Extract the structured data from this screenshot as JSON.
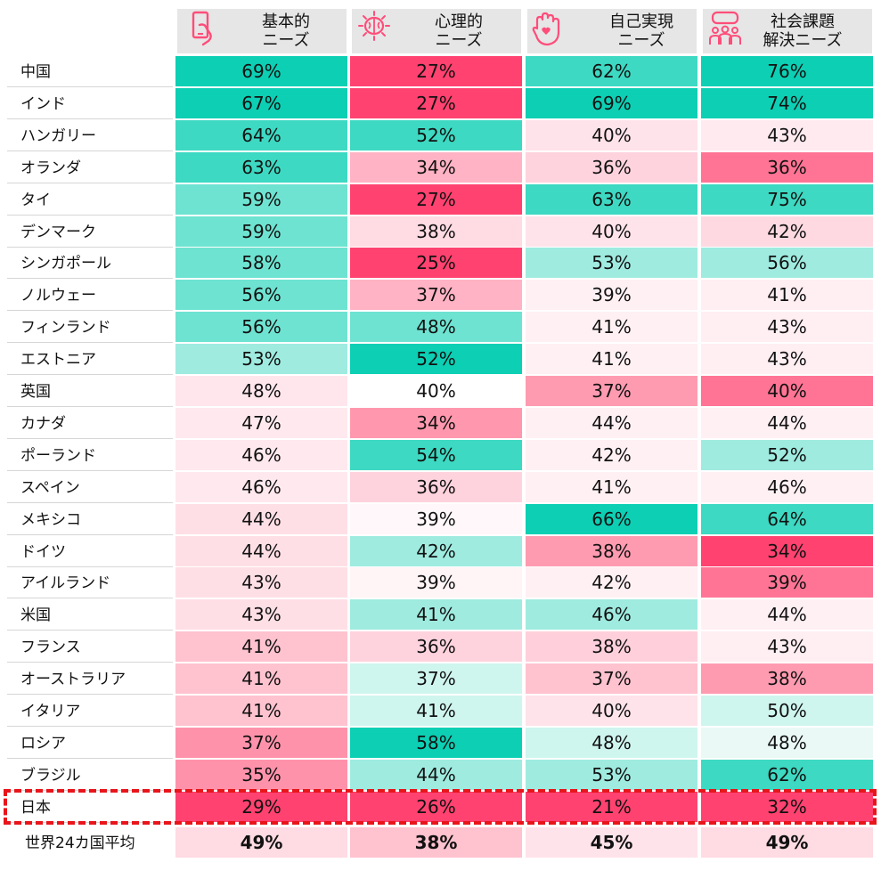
{
  "chart_data": {
    "type": "heatmap",
    "columns": [
      {
        "label": "基本的\nニーズ",
        "icon": "smartphone-hand-icon"
      },
      {
        "label": "心理的\nニーズ",
        "icon": "brain-icon"
      },
      {
        "label": "自己実現\nニーズ",
        "icon": "raised-hand-heart-icon"
      },
      {
        "label": "社会課題\n解決ニーズ",
        "icon": "community-people-icon"
      }
    ],
    "rows": [
      {
        "country": "中国",
        "values": [
          69,
          27,
          62,
          76
        ]
      },
      {
        "country": "インド",
        "values": [
          67,
          27,
          69,
          74
        ]
      },
      {
        "country": "ハンガリー",
        "values": [
          64,
          52,
          40,
          43
        ]
      },
      {
        "country": "オランダ",
        "values": [
          63,
          34,
          36,
          36
        ]
      },
      {
        "country": "タイ",
        "values": [
          59,
          27,
          63,
          75
        ]
      },
      {
        "country": "デンマーク",
        "values": [
          59,
          38,
          40,
          42
        ]
      },
      {
        "country": "シンガポール",
        "values": [
          58,
          25,
          53,
          56
        ]
      },
      {
        "country": "ノルウェー",
        "values": [
          56,
          37,
          39,
          41
        ]
      },
      {
        "country": "フィンランド",
        "values": [
          56,
          48,
          41,
          43
        ]
      },
      {
        "country": "エストニア",
        "values": [
          53,
          52,
          41,
          43
        ]
      },
      {
        "country": "英国",
        "values": [
          48,
          40,
          37,
          40
        ]
      },
      {
        "country": "カナダ",
        "values": [
          47,
          34,
          44,
          44
        ]
      },
      {
        "country": "ポーランド",
        "values": [
          46,
          54,
          42,
          52
        ]
      },
      {
        "country": "スペイン",
        "values": [
          46,
          36,
          41,
          46
        ]
      },
      {
        "country": "メキシコ",
        "values": [
          44,
          39,
          66,
          64
        ]
      },
      {
        "country": "ドイツ",
        "values": [
          44,
          42,
          38,
          34
        ]
      },
      {
        "country": "アイルランド",
        "values": [
          43,
          39,
          42,
          39
        ]
      },
      {
        "country": "米国",
        "values": [
          43,
          41,
          46,
          44
        ]
      },
      {
        "country": "フランス",
        "values": [
          41,
          36,
          38,
          43
        ]
      },
      {
        "country": "オーストラリア",
        "values": [
          41,
          37,
          37,
          38
        ]
      },
      {
        "country": "イタリア",
        "values": [
          41,
          41,
          40,
          50
        ]
      },
      {
        "country": "ロシア",
        "values": [
          37,
          58,
          48,
          48
        ]
      },
      {
        "country": "ブラジル",
        "values": [
          35,
          44,
          53,
          62
        ]
      },
      {
        "country": "日本",
        "values": [
          29,
          26,
          21,
          32
        ],
        "highlight": true
      }
    ],
    "average": {
      "country": "世界24カ国平均",
      "values": [
        49,
        38,
        45,
        49
      ]
    },
    "unit": "%",
    "highlight_color": "#e8151b",
    "cell_colors": {
      "0": [
        "#0ccfb4",
        "#ff4270",
        "#3dd9c2",
        "#0ccfb4"
      ],
      "1": [
        "#0ccfb4",
        "#ff4270",
        "#0ccfb4",
        "#0ccfb4"
      ],
      "2": [
        "#3dd9c2",
        "#3dd9c2",
        "#ffe3ea",
        "#ffeaef"
      ],
      "3": [
        "#3dd9c2",
        "#ffb3c4",
        "#ffd3de",
        "#ff7495"
      ],
      "4": [
        "#6ee3d1",
        "#ff4270",
        "#3dd9c2",
        "#3dd9c2"
      ],
      "5": [
        "#6ee3d1",
        "#ffdbe3",
        "#ffe3ea",
        "#ffd9e2"
      ],
      "6": [
        "#6ee3d1",
        "#ff4270",
        "#9febe0",
        "#9febe0"
      ],
      "7": [
        "#6ee3d1",
        "#ffb3c4",
        "#fff0f3",
        "#ffeef2"
      ],
      "8": [
        "#6ee3d1",
        "#6ee3d1",
        "#fff0f3",
        "#ffeef2"
      ],
      "9": [
        "#9febe0",
        "#0ccfb4",
        "#fff0f3",
        "#ffeef2"
      ],
      "10": [
        "#ffe6ec",
        "#ffffff",
        "#ff9bb1",
        "#ff7495"
      ],
      "11": [
        "#ffe9ee",
        "#ff98ae",
        "#fff0f3",
        "#fff0f3"
      ],
      "12": [
        "#ffe9ee",
        "#3dd9c2",
        "#fff0f3",
        "#9febe0"
      ],
      "13": [
        "#ffe9ee",
        "#ffd3de",
        "#fff0f3",
        "#fff0f3"
      ],
      "14": [
        "#ffdfe6",
        "#fff7f9",
        "#0ccfb4",
        "#3dd9c2"
      ],
      "15": [
        "#ffdfe6",
        "#9febe0",
        "#ff9bb1",
        "#ff4270"
      ],
      "16": [
        "#ffdfe6",
        "#fff4f6",
        "#fff0f3",
        "#ff7495"
      ],
      "17": [
        "#ffdfe6",
        "#9febe0",
        "#9febe0",
        "#fff0f3"
      ],
      "18": [
        "#ffc2cf",
        "#ffd3de",
        "#ffd0db",
        "#ffeef2"
      ],
      "19": [
        "#ffc2cf",
        "#cff5ef",
        "#ffc2cf",
        "#ff9bb1"
      ],
      "20": [
        "#ffc2cf",
        "#cff5ef",
        "#ffe3ea",
        "#cff5ef"
      ],
      "21": [
        "#ff92ab",
        "#0ccfb4",
        "#cff5ef",
        "#eaf9f6"
      ],
      "22": [
        "#ff92ab",
        "#9febe0",
        "#9febe0",
        "#3dd9c2"
      ],
      "23": [
        "#ff4270",
        "#ff4270",
        "#ff4270",
        "#ff4270"
      ],
      "24": [
        "#ffdbe3",
        "#ffc2cf",
        "#ffe3ea",
        "#ffdbe3"
      ]
    }
  }
}
